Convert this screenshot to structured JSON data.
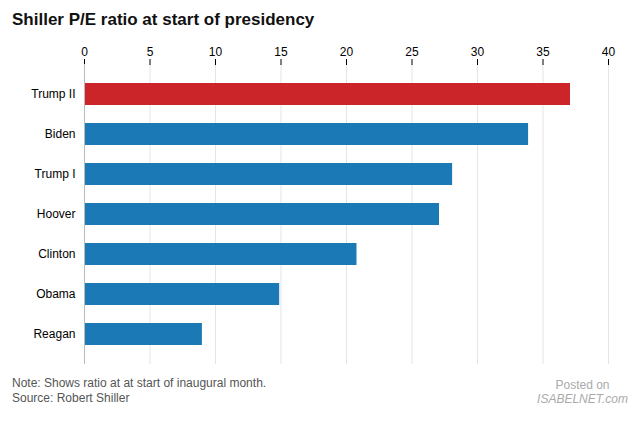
{
  "chart_data": {
    "type": "bar",
    "orientation": "horizontal",
    "title": "Shiller P/E ratio at start of presidency",
    "categories": [
      "Reagan",
      "Obama",
      "Clinton",
      "Hoover",
      "Trump I",
      "Biden",
      "Trump II"
    ],
    "values": [
      9.0,
      14.9,
      20.8,
      27.1,
      28.1,
      33.9,
      37.1
    ],
    "colors": [
      "#1b7ab5",
      "#1b7ab5",
      "#1b7ab5",
      "#1b7ab5",
      "#1b7ab5",
      "#1b7ab5",
      "#cc2529"
    ],
    "xlim": [
      0,
      40
    ],
    "xticks": [
      0,
      5,
      10,
      15,
      20,
      25,
      30,
      35,
      40
    ],
    "grid": true,
    "annotations": [
      "Note: Shows ratio at at start of inaugural month.",
      "Source: Robert Shiller",
      "Posted on",
      "ISABELNET.com"
    ]
  }
}
